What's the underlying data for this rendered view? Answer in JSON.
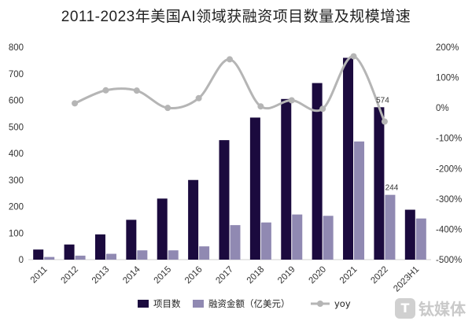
{
  "title": "2011-2023年美国AI领域获融资项目数量及规模增速",
  "watermark": "钛媒体",
  "colors": {
    "projects": "#1b0a3e",
    "funding": "#9089b2",
    "yoy": "#b5b5b5"
  },
  "chart_data": {
    "type": "bar",
    "title": "2011-2023年美国AI领域获融资项目数量及规模增速",
    "categories": [
      "2011",
      "2012",
      "2013",
      "2014",
      "2015",
      "2016",
      "2017",
      "2018",
      "2019",
      "2020",
      "2021",
      "2022",
      "2023H1"
    ],
    "series": [
      {
        "name": "项目数",
        "type": "bar",
        "axis": "left",
        "values": [
          38,
          57,
          95,
          150,
          230,
          300,
          450,
          535,
          605,
          665,
          760,
          574,
          188
        ]
      },
      {
        "name": "融资金额（亿美元）",
        "type": "bar",
        "axis": "left",
        "values": [
          10,
          15,
          22,
          35,
          35,
          50,
          130,
          140,
          170,
          165,
          445,
          244,
          155
        ]
      },
      {
        "name": "yoy",
        "type": "line",
        "axis": "right",
        "values": [
          null,
          15,
          58,
          57,
          0,
          32,
          160,
          5,
          25,
          -3,
          170,
          -45,
          null
        ]
      }
    ],
    "ylim": [
      0,
      800
    ],
    "yticks": [
      0,
      100,
      200,
      300,
      400,
      500,
      600,
      700,
      800
    ],
    "y2lim": [
      -500,
      200
    ],
    "y2ticks": [
      "200%",
      "100%",
      "0%",
      "-100%",
      "-200%",
      "-300%",
      "-400%",
      "-500%"
    ],
    "data_labels": [
      {
        "series": "项目数",
        "category": "2022",
        "text": "574"
      },
      {
        "series": "融资金额（亿美元）",
        "category": "2022",
        "text": "244"
      }
    ],
    "grid": false,
    "legend_position": "bottom"
  }
}
